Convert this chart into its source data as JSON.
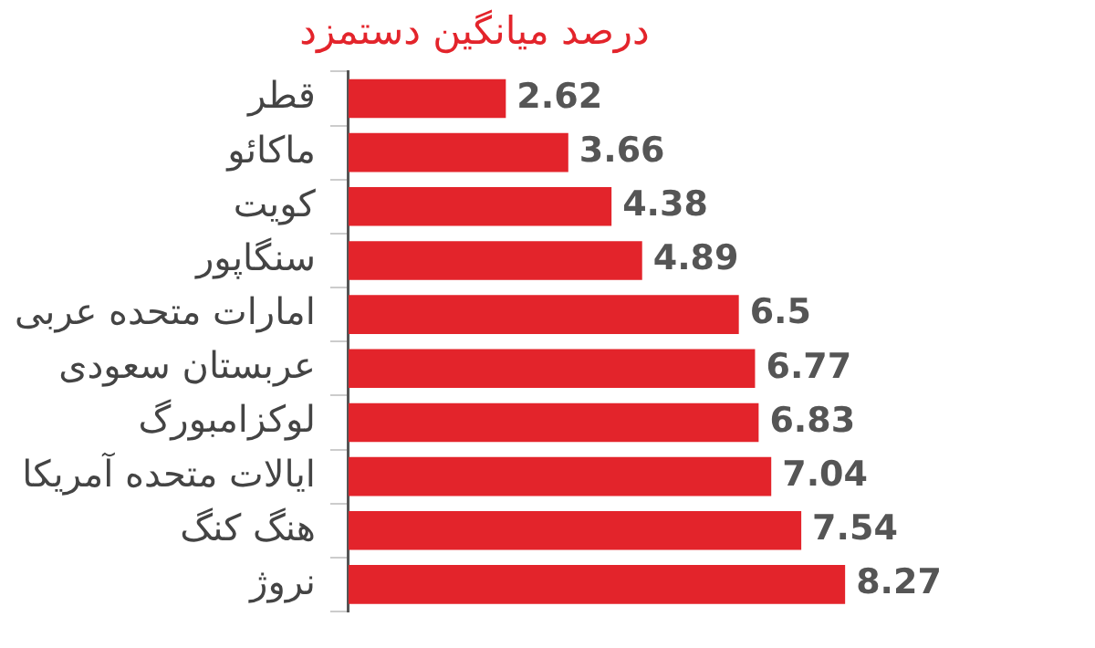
{
  "chart_data": {
    "type": "bar",
    "orientation": "horizontal",
    "title": "درصد میانگین دستمزد",
    "categories": [
      "قطر",
      "ماکائو",
      "کویت",
      "سنگاپور",
      "امارات متحده عربی",
      "عربستان سعودی",
      "لوکزامبورگ",
      "ایالات متحده آمریکا",
      "هنگ کنگ",
      "نروژ"
    ],
    "values": [
      2.62,
      3.66,
      4.38,
      4.89,
      6.5,
      6.77,
      6.83,
      7.04,
      7.54,
      8.27
    ],
    "color": "#e3242b",
    "data_labels": true,
    "grid": false,
    "legend": false,
    "tick_labels": "y"
  }
}
